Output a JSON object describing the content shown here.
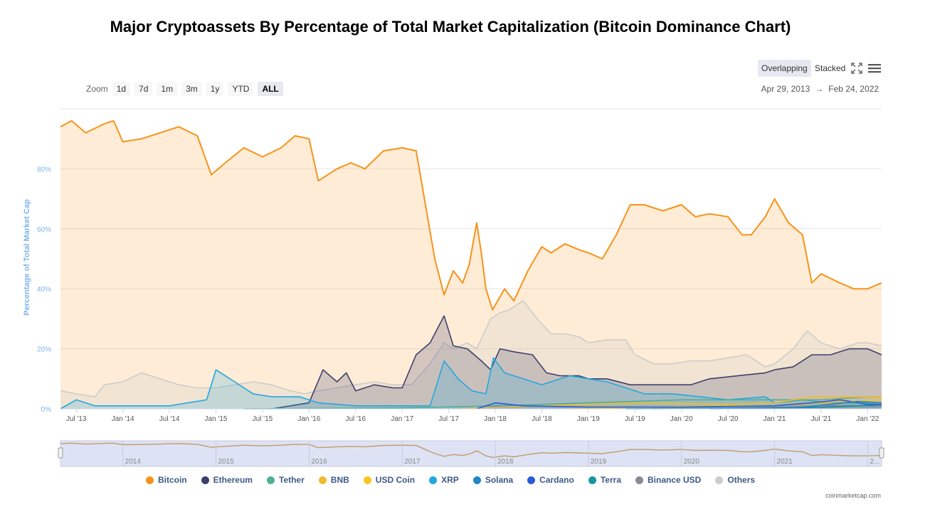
{
  "title": "Major Cryptoassets By Percentage of Total Market Capitalization (Bitcoin Dominance Chart)",
  "controls": {
    "modes": [
      "Overlapping",
      "Stacked"
    ],
    "active_mode": "Overlapping",
    "zoom_label": "Zoom",
    "zoom_options": [
      "1d",
      "7d",
      "1m",
      "3m",
      "1y",
      "YTD",
      "ALL"
    ],
    "active_zoom": "ALL",
    "range_start": "Apr 29, 2013",
    "range_arrow": "→",
    "range_end": "Feb 24, 2022"
  },
  "icons": {
    "fullscreen": "fullscreen-icon",
    "menu": "hamburger-menu-icon"
  },
  "credit": "coinmarketcap.com",
  "chart_data": {
    "type": "area",
    "title": "Major Cryptoassets By Percentage of Total Market Capitalization (Bitcoin Dominance Chart)",
    "ylabel": "Percentage of Total Market Cap",
    "ylim": [
      0,
      100
    ],
    "yticks": [
      "0%",
      "20%",
      "40%",
      "60%",
      "80%"
    ],
    "xlim": [
      2013.33,
      2022.15
    ],
    "xticks": [
      {
        "x": 2013.5,
        "label": "Jul '13"
      },
      {
        "x": 2014.0,
        "label": "Jan '14"
      },
      {
        "x": 2014.5,
        "label": "Jul '14"
      },
      {
        "x": 2015.0,
        "label": "Jan '15"
      },
      {
        "x": 2015.5,
        "label": "Jul '15"
      },
      {
        "x": 2016.0,
        "label": "Jan '16"
      },
      {
        "x": 2016.5,
        "label": "Jul '16"
      },
      {
        "x": 2017.0,
        "label": "Jan '17"
      },
      {
        "x": 2017.5,
        "label": "Jul '17"
      },
      {
        "x": 2018.0,
        "label": "Jan '18"
      },
      {
        "x": 2018.5,
        "label": "Jul '18"
      },
      {
        "x": 2019.0,
        "label": "Jan '19"
      },
      {
        "x": 2019.5,
        "label": "Jul '19"
      },
      {
        "x": 2020.0,
        "label": "Jan '20"
      },
      {
        "x": 2020.5,
        "label": "Jul '20"
      },
      {
        "x": 2021.0,
        "label": "Jan '21"
      },
      {
        "x": 2021.5,
        "label": "Jul '21"
      },
      {
        "x": 2022.0,
        "label": "Jan '22"
      }
    ],
    "navigator_labels": [
      "2014",
      "2015",
      "2016",
      "2017",
      "2018",
      "2019",
      "2020",
      "2021",
      "2..."
    ],
    "grid": true,
    "legend_position": "bottom",
    "series": [
      {
        "name": "Bitcoin",
        "color": "#f7931a",
        "points": [
          [
            2013.33,
            94
          ],
          [
            2013.45,
            96
          ],
          [
            2013.6,
            92
          ],
          [
            2013.8,
            95
          ],
          [
            2013.9,
            96
          ],
          [
            2014.0,
            89
          ],
          [
            2014.2,
            90
          ],
          [
            2014.4,
            92
          ],
          [
            2014.6,
            94
          ],
          [
            2014.8,
            91
          ],
          [
            2014.95,
            78
          ],
          [
            2015.1,
            82
          ],
          [
            2015.3,
            87
          ],
          [
            2015.5,
            84
          ],
          [
            2015.7,
            87
          ],
          [
            2015.85,
            91
          ],
          [
            2016.0,
            90
          ],
          [
            2016.1,
            76
          ],
          [
            2016.3,
            80
          ],
          [
            2016.45,
            82
          ],
          [
            2016.6,
            80
          ],
          [
            2016.8,
            86
          ],
          [
            2017.0,
            87
          ],
          [
            2017.15,
            86
          ],
          [
            2017.25,
            68
          ],
          [
            2017.35,
            50
          ],
          [
            2017.45,
            38
          ],
          [
            2017.55,
            46
          ],
          [
            2017.65,
            42
          ],
          [
            2017.72,
            48
          ],
          [
            2017.8,
            62
          ],
          [
            2017.85,
            52
          ],
          [
            2017.9,
            40
          ],
          [
            2017.97,
            33
          ],
          [
            2018.1,
            40
          ],
          [
            2018.2,
            36
          ],
          [
            2018.35,
            46
          ],
          [
            2018.5,
            54
          ],
          [
            2018.6,
            52
          ],
          [
            2018.75,
            55
          ],
          [
            2018.9,
            53
          ],
          [
            2019.0,
            52
          ],
          [
            2019.15,
            50
          ],
          [
            2019.3,
            58
          ],
          [
            2019.45,
            68
          ],
          [
            2019.6,
            68
          ],
          [
            2019.8,
            66
          ],
          [
            2020.0,
            68
          ],
          [
            2020.15,
            64
          ],
          [
            2020.3,
            65
          ],
          [
            2020.5,
            64
          ],
          [
            2020.65,
            58
          ],
          [
            2020.75,
            58
          ],
          [
            2020.9,
            64
          ],
          [
            2021.0,
            70
          ],
          [
            2021.15,
            62
          ],
          [
            2021.3,
            58
          ],
          [
            2021.4,
            42
          ],
          [
            2021.5,
            45
          ],
          [
            2021.7,
            42
          ],
          [
            2021.85,
            40
          ],
          [
            2022.0,
            40
          ],
          [
            2022.15,
            42
          ]
        ]
      },
      {
        "name": "Ethereum",
        "color": "#3f3f6b",
        "points": [
          [
            2015.6,
            0
          ],
          [
            2015.8,
            1
          ],
          [
            2016.0,
            2
          ],
          [
            2016.15,
            13
          ],
          [
            2016.3,
            9
          ],
          [
            2016.4,
            12
          ],
          [
            2016.5,
            6
          ],
          [
            2016.7,
            8
          ],
          [
            2016.9,
            7
          ],
          [
            2017.0,
            7
          ],
          [
            2017.15,
            18
          ],
          [
            2017.3,
            22
          ],
          [
            2017.45,
            31
          ],
          [
            2017.55,
            21
          ],
          [
            2017.7,
            20
          ],
          [
            2017.85,
            16
          ],
          [
            2017.95,
            13
          ],
          [
            2018.05,
            20
          ],
          [
            2018.2,
            19
          ],
          [
            2018.4,
            18
          ],
          [
            2018.55,
            12
          ],
          [
            2018.7,
            11
          ],
          [
            2018.9,
            11
          ],
          [
            2019.0,
            10
          ],
          [
            2019.2,
            10
          ],
          [
            2019.45,
            8
          ],
          [
            2019.7,
            8
          ],
          [
            2019.9,
            8
          ],
          [
            2020.1,
            8
          ],
          [
            2020.3,
            10
          ],
          [
            2020.6,
            11
          ],
          [
            2020.9,
            12
          ],
          [
            2021.0,
            13
          ],
          [
            2021.2,
            14
          ],
          [
            2021.4,
            18
          ],
          [
            2021.6,
            18
          ],
          [
            2021.8,
            20
          ],
          [
            2022.0,
            20
          ],
          [
            2022.15,
            18
          ]
        ]
      },
      {
        "name": "Tether",
        "color": "#50af95",
        "points": [
          [
            2015.3,
            0
          ],
          [
            2017.0,
            0.3
          ],
          [
            2018.0,
            1
          ],
          [
            2019.0,
            2
          ],
          [
            2020.0,
            3
          ],
          [
            2021.0,
            3
          ],
          [
            2021.5,
            3
          ],
          [
            2022.0,
            4
          ],
          [
            2022.15,
            4
          ]
        ]
      },
      {
        "name": "BNB",
        "color": "#f3ba2f",
        "points": [
          [
            2017.6,
            0
          ],
          [
            2018.5,
            1
          ],
          [
            2019.5,
            2
          ],
          [
            2020.5,
            1.5
          ],
          [
            2021.0,
            2
          ],
          [
            2021.4,
            4
          ],
          [
            2021.8,
            4
          ],
          [
            2022.15,
            4
          ]
        ]
      },
      {
        "name": "USD Coin",
        "color": "#f7c520",
        "points": [
          [
            2018.8,
            0
          ],
          [
            2019.5,
            0.5
          ],
          [
            2020.5,
            1
          ],
          [
            2021.0,
            1
          ],
          [
            2021.5,
            2
          ],
          [
            2022.15,
            3
          ]
        ]
      },
      {
        "name": "XRP",
        "color": "#23a7e0",
        "points": [
          [
            2013.33,
            0
          ],
          [
            2013.5,
            3
          ],
          [
            2013.7,
            1
          ],
          [
            2014.0,
            1
          ],
          [
            2014.5,
            1
          ],
          [
            2014.9,
            3
          ],
          [
            2015.0,
            13
          ],
          [
            2015.1,
            11
          ],
          [
            2015.2,
            9
          ],
          [
            2015.4,
            5
          ],
          [
            2015.6,
            4
          ],
          [
            2015.9,
            4
          ],
          [
            2016.1,
            2
          ],
          [
            2016.5,
            1
          ],
          [
            2017.0,
            1
          ],
          [
            2017.3,
            1
          ],
          [
            2017.35,
            6
          ],
          [
            2017.45,
            16
          ],
          [
            2017.6,
            10
          ],
          [
            2017.75,
            6
          ],
          [
            2017.9,
            5
          ],
          [
            2017.98,
            17
          ],
          [
            2018.1,
            12
          ],
          [
            2018.3,
            10
          ],
          [
            2018.5,
            8
          ],
          [
            2018.7,
            10
          ],
          [
            2018.8,
            11
          ],
          [
            2019.0,
            10
          ],
          [
            2019.2,
            9
          ],
          [
            2019.4,
            7
          ],
          [
            2019.6,
            5
          ],
          [
            2019.9,
            5
          ],
          [
            2020.2,
            4
          ],
          [
            2020.5,
            3
          ],
          [
            2020.9,
            4
          ],
          [
            2021.0,
            2
          ],
          [
            2021.3,
            3
          ],
          [
            2021.6,
            2
          ],
          [
            2022.0,
            2
          ],
          [
            2022.15,
            2
          ]
        ]
      },
      {
        "name": "Solana",
        "color": "#1e87c8",
        "points": [
          [
            2020.3,
            0
          ],
          [
            2020.9,
            0.2
          ],
          [
            2021.3,
            0.5
          ],
          [
            2021.6,
            1.5
          ],
          [
            2021.9,
            2.5
          ],
          [
            2022.15,
            2
          ]
        ]
      },
      {
        "name": "Cardano",
        "color": "#2a5ada",
        "points": [
          [
            2017.8,
            0
          ],
          [
            2018.0,
            2
          ],
          [
            2018.3,
            1
          ],
          [
            2019.0,
            0.6
          ],
          [
            2020.0,
            0.6
          ],
          [
            2021.0,
            1
          ],
          [
            2021.4,
            2
          ],
          [
            2021.7,
            3
          ],
          [
            2022.0,
            1.5
          ],
          [
            2022.15,
            1.5
          ]
        ]
      },
      {
        "name": "Terra",
        "color": "#1696a3",
        "points": [
          [
            2019.4,
            0
          ],
          [
            2020.5,
            0.2
          ],
          [
            2021.0,
            0.3
          ],
          [
            2021.5,
            0.5
          ],
          [
            2021.9,
            1
          ],
          [
            2022.15,
            1.5
          ]
        ]
      },
      {
        "name": "Binance USD",
        "color": "#8a8a96",
        "points": [
          [
            2019.7,
            0
          ],
          [
            2020.5,
            0.2
          ],
          [
            2021.0,
            0.5
          ],
          [
            2021.5,
            1
          ],
          [
            2022.15,
            1
          ]
        ]
      },
      {
        "name": "Others",
        "color": "#cccccc",
        "points": [
          [
            2013.33,
            6
          ],
          [
            2013.5,
            5
          ],
          [
            2013.7,
            4
          ],
          [
            2013.8,
            8
          ],
          [
            2014.0,
            9
          ],
          [
            2014.2,
            12
          ],
          [
            2014.4,
            10
          ],
          [
            2014.6,
            8
          ],
          [
            2014.8,
            7
          ],
          [
            2015.0,
            7
          ],
          [
            2015.2,
            8
          ],
          [
            2015.4,
            9
          ],
          [
            2015.6,
            8
          ],
          [
            2015.8,
            6
          ],
          [
            2015.95,
            5
          ],
          [
            2016.1,
            6
          ],
          [
            2016.3,
            7
          ],
          [
            2016.5,
            8
          ],
          [
            2016.7,
            9
          ],
          [
            2016.9,
            8
          ],
          [
            2017.1,
            8
          ],
          [
            2017.3,
            15
          ],
          [
            2017.45,
            22
          ],
          [
            2017.55,
            20
          ],
          [
            2017.7,
            22
          ],
          [
            2017.8,
            20
          ],
          [
            2017.95,
            30
          ],
          [
            2018.05,
            32
          ],
          [
            2018.15,
            33
          ],
          [
            2018.3,
            36
          ],
          [
            2018.45,
            30
          ],
          [
            2018.6,
            25
          ],
          [
            2018.75,
            25
          ],
          [
            2018.9,
            24
          ],
          [
            2019.0,
            22
          ],
          [
            2019.2,
            23
          ],
          [
            2019.4,
            23
          ],
          [
            2019.5,
            18
          ],
          [
            2019.7,
            15
          ],
          [
            2019.9,
            15
          ],
          [
            2020.1,
            16
          ],
          [
            2020.3,
            16
          ],
          [
            2020.5,
            17
          ],
          [
            2020.7,
            18
          ],
          [
            2020.9,
            14
          ],
          [
            2021.0,
            15
          ],
          [
            2021.2,
            20
          ],
          [
            2021.35,
            26
          ],
          [
            2021.5,
            22
          ],
          [
            2021.7,
            20
          ],
          [
            2021.9,
            22
          ],
          [
            2022.0,
            22
          ],
          [
            2022.15,
            21
          ]
        ]
      }
    ]
  }
}
